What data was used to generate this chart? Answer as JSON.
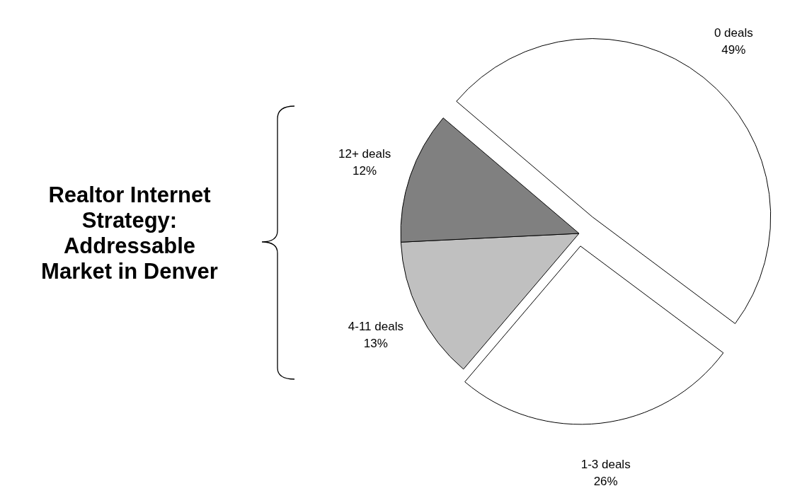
{
  "chart_data": {
    "type": "pie",
    "title": "Realtor Internet Strategy: Addressable Market in Denver",
    "categories": [
      "0 deals",
      "1-3 deals",
      "4-11 deals",
      "12+ deals"
    ],
    "values": [
      49,
      26,
      13,
      12
    ],
    "value_labels": [
      "49%",
      "26%",
      "13%",
      "12%"
    ],
    "colors": [
      "#ffffff",
      "#ffffff",
      "#c0c0c0",
      "#808080"
    ]
  }
}
